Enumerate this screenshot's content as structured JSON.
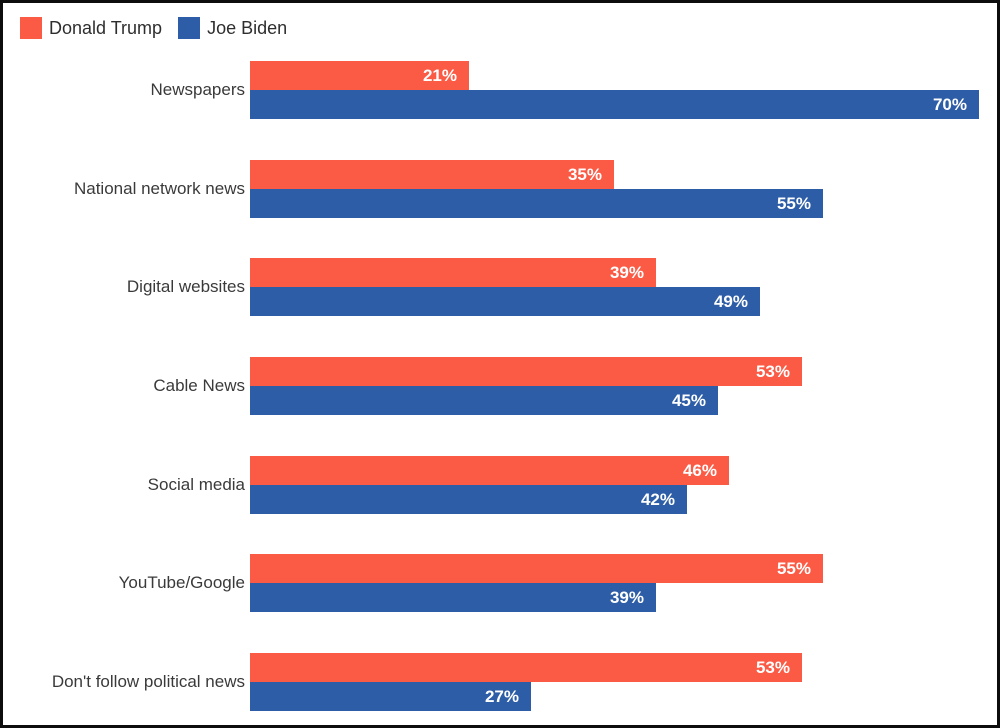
{
  "chart_data": {
    "type": "bar",
    "orientation": "horizontal",
    "title": "",
    "categories": [
      "Newspapers",
      "National network news",
      "Digital websites",
      "Cable News",
      "Social media",
      "YouTube/Google",
      "Don't follow political news"
    ],
    "series": [
      {
        "name": "Donald Trump",
        "color": "#FB5B45",
        "values": [
          21,
          35,
          39,
          53,
          46,
          55,
          53
        ]
      },
      {
        "name": "Joe Biden",
        "color": "#2D5DA6",
        "values": [
          70,
          55,
          49,
          45,
          42,
          39,
          27
        ]
      }
    ],
    "value_suffix": "%",
    "value_labels": "inside-end",
    "xlim": [
      0,
      72
    ],
    "grid": false,
    "axes_visible": false,
    "legend_position": "top-left"
  },
  "style": {
    "border_color": "#0d0d0d",
    "background": "#ffffff",
    "label_color": "#3a3a3a",
    "value_label_color": "#ffffff"
  }
}
